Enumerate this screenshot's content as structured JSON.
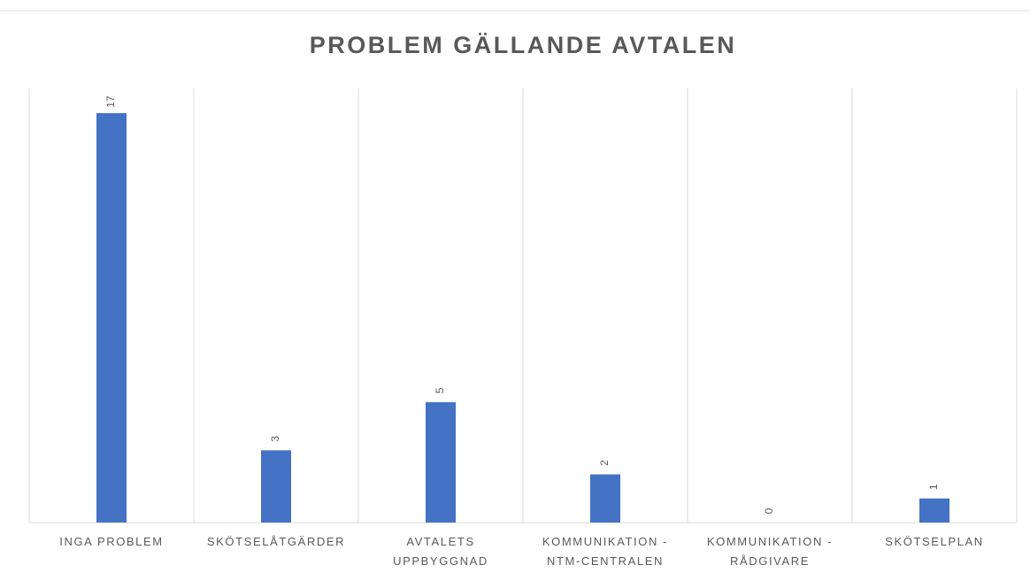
{
  "chart_data": {
    "type": "bar",
    "title": "PROBLEM GÄLLANDE AVTALEN",
    "categories": [
      "INGA PROBLEM",
      "SKÖTSELÅTGÄRDER",
      "AVTALETS UPPBYGGNAD",
      "KOMMUNIKATION - NTM-CENTRALEN",
      "KOMMUNIKATION - RÅDGIVARE",
      "SKÖTSELPLAN"
    ],
    "values": [
      17,
      3,
      5,
      2,
      0,
      1
    ],
    "color": "#4472c4",
    "ylim": [
      0,
      17
    ]
  }
}
